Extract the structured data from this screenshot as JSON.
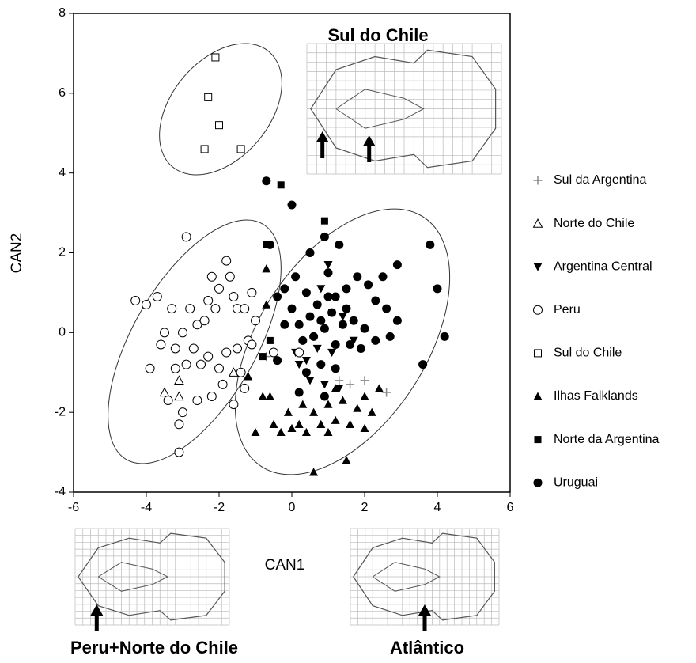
{
  "chart_data": {
    "type": "scatter",
    "x_label": "CAN1",
    "y_label": "CAN2",
    "xlim": [
      -6,
      6
    ],
    "xticks": [
      -6,
      -4,
      -2,
      0,
      2,
      4,
      6
    ],
    "ylim": [
      -4,
      8
    ],
    "yticks": [
      -4,
      -2,
      0,
      2,
      4,
      6,
      8
    ],
    "annotations": [
      "Sul do Chile",
      "Peru+Norte do Chile",
      "Atlântico"
    ],
    "series": [
      {
        "name": "Sul da Argentina",
        "marker": "plus",
        "color": "#888888",
        "x": [
          2.6,
          1.6,
          1.3,
          2.0,
          -0.7
        ],
        "y": [
          -1.5,
          -1.3,
          -1.2,
          -1.2,
          -0.6
        ]
      },
      {
        "name": "Norte do Chile",
        "marker": "triangle-open",
        "color": "#000000",
        "x": [
          -3.5,
          -3.1,
          -3.1,
          -1.6
        ],
        "y": [
          -1.5,
          -1.2,
          -1.6,
          -1.0
        ]
      },
      {
        "name": "Argentina Central",
        "marker": "triangle-down",
        "color": "#000000",
        "x": [
          0.2,
          0.5,
          0.9,
          1.3,
          0.7,
          1.1,
          1.7,
          0.1,
          1.4,
          0.4,
          1.0,
          0.8
        ],
        "y": [
          -0.8,
          -1.2,
          -1.3,
          -1.4,
          -0.4,
          -0.5,
          -0.2,
          -0.5,
          0.4,
          -0.7,
          1.7,
          1.1
        ]
      },
      {
        "name": "Peru",
        "marker": "circle-open",
        "color": "#000000",
        "x": [
          -4.3,
          -4.0,
          -3.7,
          -3.3,
          -3.5,
          -3.6,
          -3.9,
          -3.2,
          -3.0,
          -2.8,
          -2.6,
          -2.4,
          -2.3,
          -2.1,
          -2.0,
          -1.8,
          -1.7,
          -1.6,
          -1.5,
          -1.3,
          -1.1,
          -1.0,
          -1.2,
          -1.5,
          -1.8,
          -2.0,
          -2.3,
          -2.5,
          -2.7,
          -2.9,
          -3.2,
          -3.4,
          -3.0,
          -2.6,
          -2.2,
          -1.6,
          -1.9,
          -1.4,
          -1.3,
          -3.1,
          -2.9,
          -3.1,
          -0.5,
          0.2,
          -1.1,
          -2.2
        ],
        "y": [
          0.8,
          0.7,
          0.9,
          0.6,
          0.0,
          -0.3,
          -0.9,
          -0.4,
          0.0,
          0.6,
          0.2,
          0.3,
          0.8,
          0.6,
          1.1,
          1.8,
          1.4,
          0.9,
          0.6,
          0.6,
          1.0,
          0.3,
          -0.2,
          -0.4,
          -0.5,
          -0.9,
          -0.6,
          -0.8,
          -0.4,
          -0.8,
          -0.9,
          -1.7,
          -2.0,
          -1.7,
          -1.6,
          -1.8,
          -1.3,
          -1.0,
          -1.4,
          -3.0,
          2.4,
          -2.3,
          -0.5,
          -0.5,
          -0.3,
          1.4
        ]
      },
      {
        "name": "Sul do Chile",
        "marker": "square-open",
        "color": "#000000",
        "x": [
          -2.1,
          -2.3,
          -2.0,
          -2.4,
          -1.4
        ],
        "y": [
          6.9,
          5.9,
          5.2,
          4.6,
          4.6
        ]
      },
      {
        "name": "Ilhas Falklands",
        "marker": "triangle",
        "color": "#000000",
        "x": [
          -0.7,
          -0.7,
          -0.8,
          -0.6,
          -1.2,
          -1.0,
          -0.5,
          -0.1,
          0.2,
          0.4,
          0.6,
          0.8,
          1.0,
          1.2,
          1.4,
          1.6,
          1.8,
          2.0,
          2.2,
          2.4,
          0.3,
          1.5,
          0.6,
          -0.3,
          1.0,
          2.0,
          1.2,
          0.0
        ],
        "y": [
          1.6,
          0.7,
          -1.6,
          -1.6,
          -1.1,
          -2.5,
          -2.3,
          -2.0,
          -2.3,
          -2.5,
          -2.0,
          -2.3,
          -1.8,
          -2.2,
          -1.7,
          -2.3,
          -1.9,
          -1.6,
          -2.0,
          -1.4,
          -1.8,
          -3.2,
          -3.5,
          -2.5,
          -2.5,
          -2.4,
          -1.4,
          -2.4
        ]
      },
      {
        "name": "Norte da Argentina",
        "marker": "square",
        "color": "#000000",
        "x": [
          -0.3,
          0.9,
          -0.7,
          -0.8,
          -0.6,
          1.1
        ],
        "y": [
          3.7,
          2.8,
          2.2,
          -0.6,
          -0.2,
          0.5
        ]
      },
      {
        "name": "Uruguai",
        "marker": "circle",
        "color": "#000000",
        "x": [
          -0.7,
          0.0,
          -0.6,
          3.8,
          4.0,
          4.2,
          3.6,
          2.9,
          2.5,
          1.3,
          0.9,
          0.5,
          0.1,
          -0.2,
          -0.4,
          0.4,
          0.7,
          1.0,
          1.2,
          1.5,
          1.8,
          2.1,
          2.3,
          2.6,
          2.9,
          2.7,
          2.3,
          2.0,
          1.7,
          1.4,
          1.1,
          0.8,
          0.5,
          0.2,
          0.0,
          -0.2,
          0.3,
          0.6,
          0.9,
          1.2,
          1.6,
          1.9,
          0.8,
          0.4,
          1.2,
          0.2,
          0.9,
          -0.4,
          1.5,
          1.0
        ],
        "y": [
          3.8,
          3.2,
          2.2,
          2.2,
          1.1,
          -0.1,
          -0.8,
          1.7,
          1.4,
          2.2,
          2.4,
          2.0,
          1.4,
          1.1,
          0.9,
          1.0,
          0.7,
          1.5,
          0.9,
          1.1,
          1.4,
          1.2,
          0.8,
          0.6,
          0.3,
          -0.1,
          -0.2,
          0.1,
          0.3,
          0.2,
          0.5,
          0.3,
          0.4,
          0.2,
          0.6,
          0.2,
          -0.2,
          -0.1,
          0.1,
          -0.3,
          -0.3,
          -0.4,
          -0.8,
          -1.0,
          -0.9,
          -1.5,
          -1.6,
          -0.7,
          0.6,
          0.9
        ]
      }
    ]
  }
}
